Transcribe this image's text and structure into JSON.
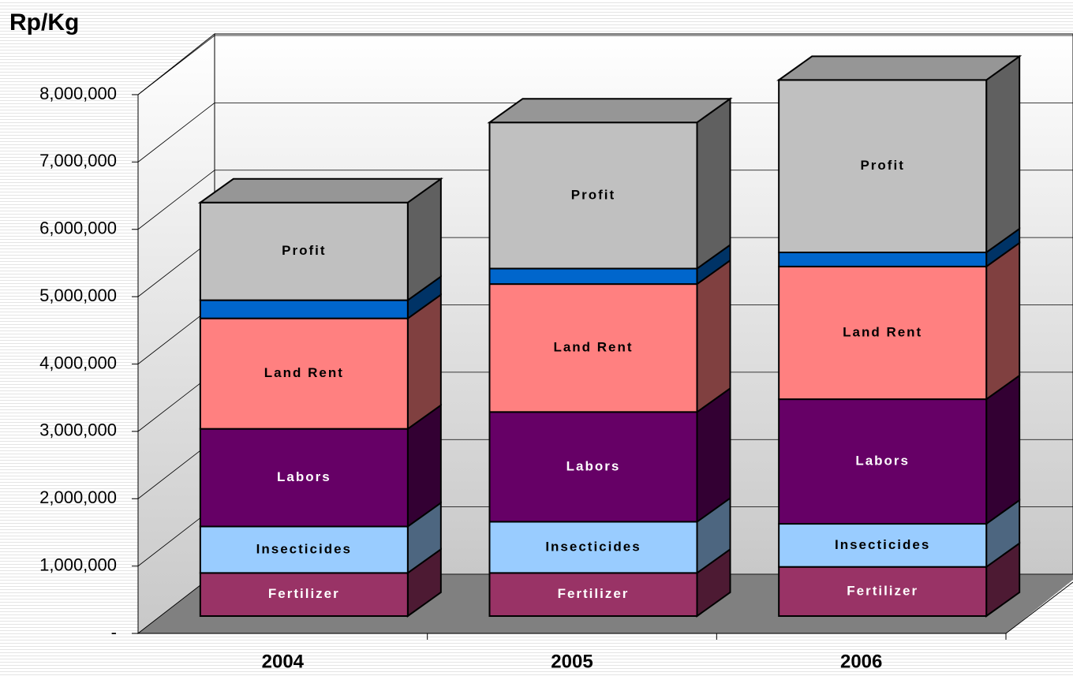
{
  "chart_data": {
    "type": "bar",
    "stacked": true,
    "three_d": true,
    "y_label": "Rp/Kg",
    "categories": [
      "2004",
      "2005",
      "2006"
    ],
    "series": [
      {
        "name": "Fertilizer",
        "color": "#993366",
        "side_color": "#4d1a33",
        "label_color": "#ffffff",
        "values": [
          640000,
          640000,
          730000
        ]
      },
      {
        "name": "Insecticides",
        "color": "#99ccff",
        "side_color": "#4d6680",
        "label_color": "#000000",
        "values": [
          690000,
          760000,
          640000
        ]
      },
      {
        "name": "Labors",
        "color": "#660066",
        "side_color": "#330033",
        "label_color": "#ffffff",
        "values": [
          1450000,
          1630000,
          1850000
        ]
      },
      {
        "name": "Land Rent",
        "color": "#ff8080",
        "side_color": "#804040",
        "label_color": "#000000",
        "values": [
          1640000,
          1900000,
          1970000
        ]
      },
      {
        "name": null,
        "color": "#0066cc",
        "side_color": "#003366",
        "label_color": "#ffffff",
        "values": [
          270000,
          230000,
          210000
        ]
      },
      {
        "name": "Profit",
        "color": "#c0c0c0",
        "side_color": "#606060",
        "label_color": "#000000",
        "values": [
          1450000,
          2170000,
          2560000
        ]
      }
    ],
    "top_color": "#969696",
    "ylim": [
      0,
      8000000
    ],
    "yticks": [
      {
        "value": 0,
        "label": "-"
      },
      {
        "value": 1000000,
        "label": "1,000,000"
      },
      {
        "value": 2000000,
        "label": "2,000,000"
      },
      {
        "value": 3000000,
        "label": "3,000,000"
      },
      {
        "value": 4000000,
        "label": "4,000,000"
      },
      {
        "value": 5000000,
        "label": "5,000,000"
      },
      {
        "value": 6000000,
        "label": "6,000,000"
      },
      {
        "value": 7000000,
        "label": "7,000,000"
      },
      {
        "value": 8000000,
        "label": "8,000,000"
      }
    ],
    "grid": true
  }
}
